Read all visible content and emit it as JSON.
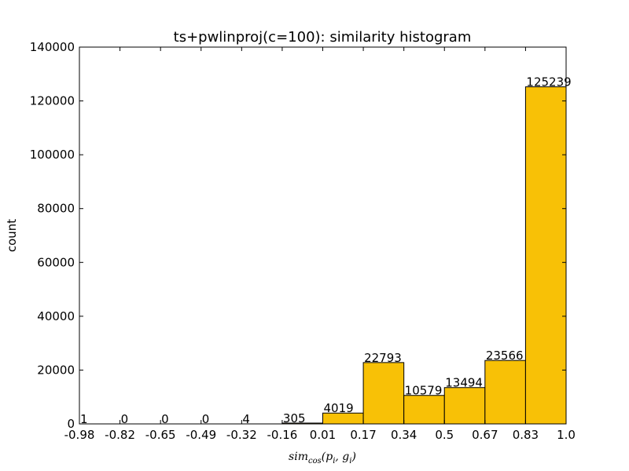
{
  "chart_data": {
    "type": "bar",
    "title": "ts+pwlinproj(c=100): similarity histogram",
    "xlabel": "sim_cos(p_i, g_i)",
    "ylabel": "count",
    "ylim": [
      0,
      140000
    ],
    "xlim": [
      -0.98,
      1.0
    ],
    "yticks": [
      0,
      20000,
      40000,
      60000,
      80000,
      100000,
      120000,
      140000
    ],
    "ytick_labels": [
      "0",
      "20000",
      "40000",
      "60000",
      "80000",
      "100000",
      "120000",
      "140000"
    ],
    "bin_edges": [
      -0.98,
      -0.82,
      -0.65,
      -0.49,
      -0.32,
      -0.16,
      0.01,
      0.17,
      0.34,
      0.5,
      0.67,
      0.83,
      1.0
    ],
    "xtick_labels": [
      "-0.98",
      "-0.82",
      "-0.65",
      "-0.49",
      "-0.32",
      "-0.16",
      "0.01",
      "0.17",
      "0.34",
      "0.5",
      "0.67",
      "0.83",
      "1.0"
    ],
    "values": [
      1,
      0,
      0,
      0,
      4,
      305,
      4019,
      22793,
      10579,
      13494,
      23566,
      125239
    ],
    "value_labels": [
      "1",
      "0",
      "0",
      "0",
      "4",
      "305",
      "4019",
      "22793",
      "10579",
      "13494",
      "23566",
      "125239"
    ],
    "bar_color": "#f8c106",
    "grid": false
  }
}
